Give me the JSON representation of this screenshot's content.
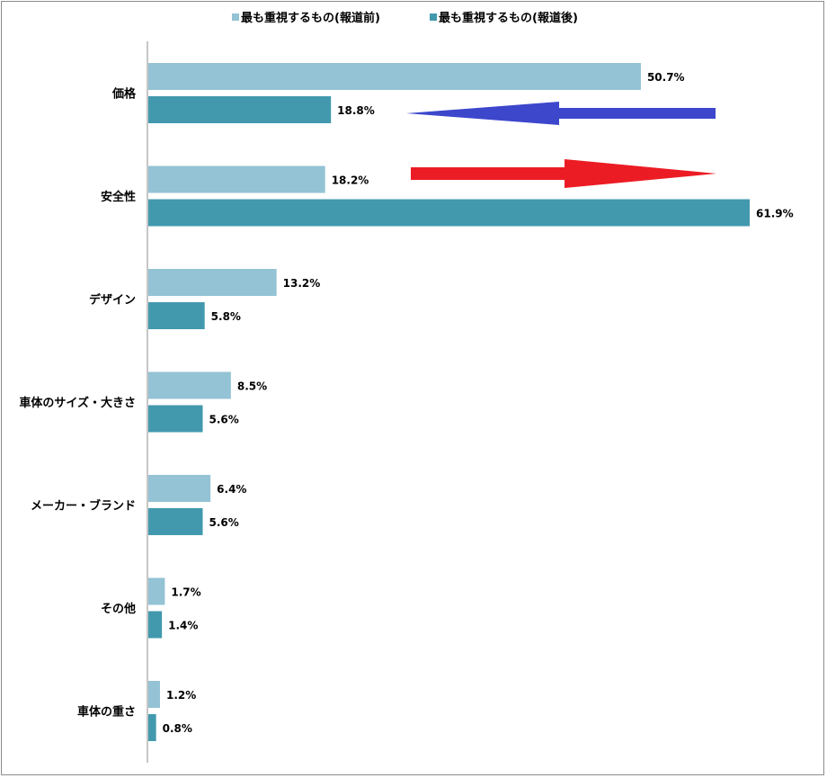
{
  "chart_data": {
    "type": "bar",
    "orientation": "horizontal",
    "categories": [
      "価格",
      "安全性",
      "デザイン",
      "車体のサイズ・大きさ",
      "メーカー・ブランド",
      "その他",
      "車体の重さ"
    ],
    "series": [
      {
        "name": "最も重視するもの(報道前)",
        "values": [
          50.7,
          18.2,
          13.2,
          8.5,
          6.4,
          1.7,
          1.2
        ],
        "labels": [
          "50.7%",
          "18.2%",
          "13.2%",
          "8.5%",
          "6.4%",
          "1.7%",
          "1.2%"
        ],
        "color": "#93c3d4"
      },
      {
        "name": "最も重視するもの(報道後)",
        "values": [
          18.8,
          61.9,
          5.8,
          5.6,
          5.6,
          1.4,
          0.8
        ],
        "labels": [
          "18.8%",
          "61.9%",
          "5.8%",
          "5.6%",
          "5.6%",
          "1.4%",
          "0.8%"
        ],
        "color": "#4299ae"
      }
    ],
    "xlim": [
      0,
      61.9
    ],
    "legend_position": "top",
    "grid": false,
    "annotations": [
      {
        "shape": "arrow",
        "direction": "left",
        "color": "#3d47cc",
        "near_category": "価格"
      },
      {
        "shape": "arrow",
        "direction": "right",
        "color": "#ec1c24",
        "near_category": "安全性"
      }
    ]
  }
}
